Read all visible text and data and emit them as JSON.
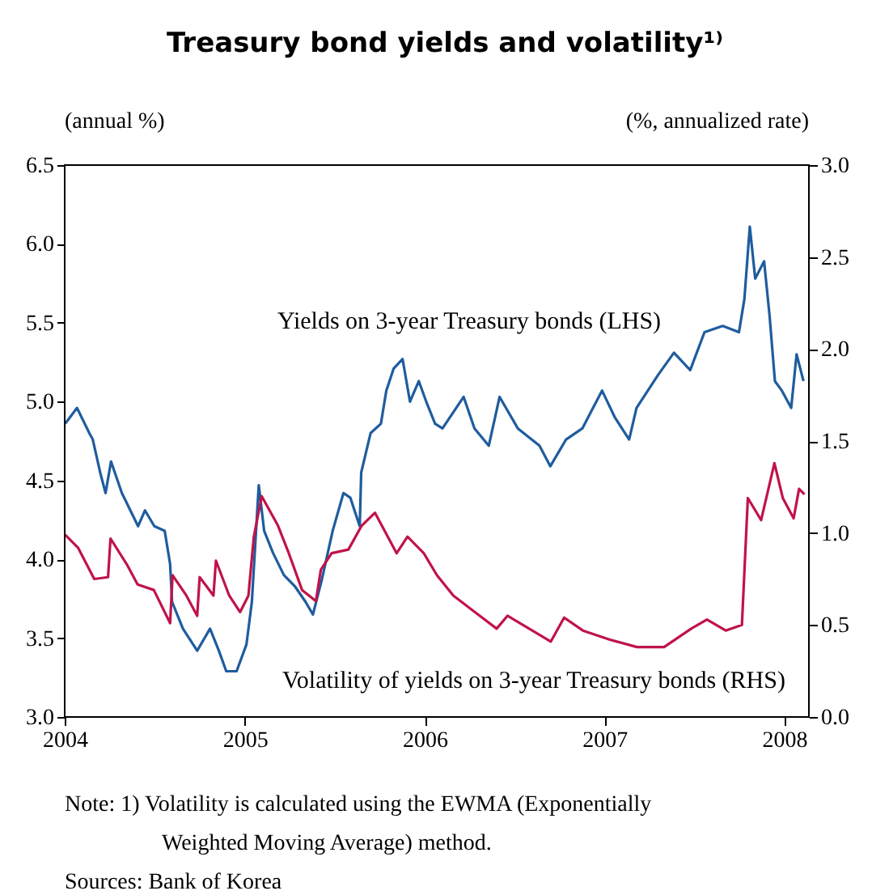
{
  "chart_data": {
    "type": "line",
    "title": "Treasury bond yields and volatility¹⁾",
    "ylabel": "(annual %)",
    "y2label": "(%, annualized rate)",
    "annotations": [
      "Note: 1) Volatility is calculated using the EWMA (Exponentially Weighted Moving Average) method.",
      "Sources: Bank of Korea"
    ],
    "xlim": [
      "2004-01-01",
      "2008-02-20"
    ],
    "xticks": [
      {
        "value": "2004-01-01",
        "label": "2004"
      },
      {
        "value": "2005-01-01",
        "label": "2005"
      },
      {
        "value": "2006-01-01",
        "label": "2006"
      },
      {
        "value": "2007-01-01",
        "label": "2007"
      },
      {
        "value": "2008-01-01",
        "label": "2008"
      }
    ],
    "ylim": [
      3.0,
      6.5
    ],
    "yticks": [
      {
        "value": 3,
        "label": "3.0"
      },
      {
        "value": 3.5,
        "label": "3.5"
      },
      {
        "value": 4,
        "label": "4.0"
      },
      {
        "value": 4.5,
        "label": "4.5"
      },
      {
        "value": 5,
        "label": "5.0"
      },
      {
        "value": 5.5,
        "label": "5.5"
      },
      {
        "value": 6,
        "label": "6.0"
      },
      {
        "value": 6.5,
        "label": "6.5"
      }
    ],
    "y2lim": [
      0.0,
      3.0
    ],
    "y2ticks": [
      {
        "value": 0,
        "label": "0.0"
      },
      {
        "value": 0.5,
        "label": "0.5"
      },
      {
        "value": 1,
        "label": "1.0"
      },
      {
        "value": 1.5,
        "label": "1.5"
      },
      {
        "value": 2,
        "label": "2.0"
      },
      {
        "value": 2.5,
        "label": "2.5"
      },
      {
        "value": 3,
        "label": "3.0"
      }
    ],
    "grid": false,
    "marker": "none",
    "line_style": "solid",
    "series": [
      {
        "name": "Yields on 3-year Treasury bonds (LHS)",
        "color": "#1f5c9e",
        "axis": "y",
        "x": [
          "2004-01-02",
          "2004-01-26",
          "2004-02-20",
          "2004-02-27",
          "2004-03-13",
          "2004-03-24",
          "2004-04-04",
          "2004-04-26",
          "2004-05-29",
          "2004-06-12",
          "2004-07-01",
          "2004-07-22",
          "2004-08-02",
          "2004-08-06",
          "2004-08-28",
          "2004-09-26",
          "2004-10-22",
          "2004-11-09",
          "2004-11-24",
          "2004-12-15",
          "2005-01-04",
          "2005-01-15",
          "2005-01-29",
          "2005-02-09",
          "2005-02-27",
          "2005-03-21",
          "2005-04-12",
          "2005-05-04",
          "2005-05-19",
          "2005-06-06",
          "2005-06-28",
          "2005-07-20",
          "2005-08-03",
          "2005-08-22",
          "2005-08-25",
          "2005-09-13",
          "2005-10-04",
          "2005-10-15",
          "2005-10-30",
          "2005-11-17",
          "2005-12-02",
          "2005-12-20",
          "2006-01-04",
          "2006-01-22",
          "2006-02-06",
          "2006-03-21",
          "2006-04-12",
          "2006-05-11",
          "2006-06-02",
          "2006-07-09",
          "2006-08-22",
          "2006-09-13",
          "2006-10-15",
          "2006-11-17",
          "2006-12-27",
          "2007-01-22",
          "2007-02-20",
          "2007-03-07",
          "2007-04-20",
          "2007-05-22",
          "2007-06-24",
          "2007-07-23",
          "2007-08-29",
          "2007-10-01",
          "2007-10-12",
          "2007-10-23",
          "2007-11-03",
          "2007-11-21",
          "2007-12-02",
          "2007-12-13",
          "2007-12-27",
          "2008-01-15",
          "2008-01-26",
          "2008-02-09"
        ],
        "values": [
          4.86,
          4.96,
          4.8,
          4.76,
          4.55,
          4.42,
          4.62,
          4.42,
          4.21,
          4.31,
          4.21,
          4.18,
          3.97,
          3.73,
          3.56,
          3.42,
          3.56,
          3.42,
          3.29,
          3.29,
          3.46,
          3.73,
          4.47,
          4.18,
          4.04,
          3.9,
          3.83,
          3.73,
          3.65,
          3.87,
          4.18,
          4.42,
          4.39,
          4.21,
          4.55,
          4.8,
          4.86,
          5.07,
          5.21,
          5.27,
          5.0,
          5.13,
          5.0,
          4.86,
          4.83,
          5.03,
          4.83,
          4.72,
          5.03,
          4.83,
          4.72,
          4.59,
          4.76,
          4.83,
          5.07,
          4.9,
          4.76,
          4.96,
          5.17,
          5.31,
          5.2,
          5.44,
          5.48,
          5.44,
          5.65,
          6.11,
          5.78,
          5.89,
          5.55,
          5.13,
          5.07,
          4.96,
          5.3,
          5.13
        ]
      },
      {
        "name": "Volatility of yields on 3-year Treasury bonds (RHS)",
        "color": "#c01349",
        "axis": "y2",
        "x": [
          "2004-01-02",
          "2004-01-28",
          "2004-03-01",
          "2004-03-29",
          "2004-04-03",
          "2004-05-06",
          "2004-05-28",
          "2004-06-30",
          "2004-08-02",
          "2004-08-07",
          "2004-09-04",
          "2004-09-26",
          "2004-10-01",
          "2004-10-29",
          "2004-11-03",
          "2004-11-30",
          "2004-12-22",
          "2005-01-08",
          "2005-01-19",
          "2005-02-04",
          "2005-03-09",
          "2005-03-31",
          "2005-04-27",
          "2005-05-25",
          "2005-06-04",
          "2005-06-26",
          "2005-07-30",
          "2005-08-26",
          "2005-09-22",
          "2005-11-05",
          "2005-11-27",
          "2005-12-30",
          "2006-01-26",
          "2006-02-28",
          "2006-04-13",
          "2006-05-27",
          "2006-06-18",
          "2006-08-01",
          "2006-09-14",
          "2006-10-11",
          "2006-11-18",
          "2007-01-12",
          "2007-03-08",
          "2007-05-02",
          "2007-06-26",
          "2007-07-28",
          "2007-09-04",
          "2007-10-07",
          "2007-10-19",
          "2007-11-15",
          "2007-12-12",
          "2007-12-29",
          "2008-01-20",
          "2008-01-31",
          "2008-02-11"
        ],
        "values": [
          0.99,
          0.92,
          0.75,
          0.76,
          0.97,
          0.83,
          0.72,
          0.69,
          0.51,
          0.77,
          0.66,
          0.55,
          0.76,
          0.66,
          0.85,
          0.66,
          0.57,
          0.66,
          0.98,
          1.2,
          1.04,
          0.89,
          0.69,
          0.63,
          0.8,
          0.89,
          0.91,
          1.04,
          1.11,
          0.89,
          0.98,
          0.89,
          0.77,
          0.66,
          0.57,
          0.48,
          0.55,
          0.48,
          0.41,
          0.54,
          0.47,
          0.42,
          0.38,
          0.38,
          0.48,
          0.53,
          0.47,
          0.5,
          1.19,
          1.07,
          1.38,
          1.19,
          1.08,
          1.24,
          1.21
        ]
      }
    ]
  }
}
